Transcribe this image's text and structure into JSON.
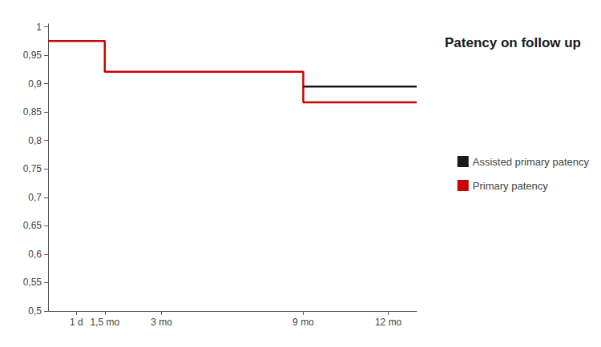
{
  "chart_data": {
    "type": "line",
    "title": "Patency on follow up",
    "xlim": [
      0,
      13
    ],
    "xticks": [
      {
        "value": 1,
        "label": "1 d"
      },
      {
        "value": 2,
        "label": "1,5 mo"
      },
      {
        "value": 4,
        "label": "3 mo"
      },
      {
        "value": 9,
        "label": "9 mo"
      },
      {
        "value": 12,
        "label": "12 mo"
      }
    ],
    "ylim": [
      0.5,
      1.005
    ],
    "yticks": [
      {
        "value": 0.5,
        "label": "0,5"
      },
      {
        "value": 0.55,
        "label": "0,55"
      },
      {
        "value": 0.6,
        "label": "0,6"
      },
      {
        "value": 0.65,
        "label": "0,65"
      },
      {
        "value": 0.7,
        "label": "0,7"
      },
      {
        "value": 0.75,
        "label": "0,75"
      },
      {
        "value": 0.8,
        "label": "0,8"
      },
      {
        "value": 0.85,
        "label": "0,85"
      },
      {
        "value": 0.9,
        "label": "0,9"
      },
      {
        "value": 0.95,
        "label": "0,95"
      },
      1
    ],
    "grid": false,
    "legend": "right",
    "marker": "none",
    "series": [
      {
        "name": "Primary patency",
        "color": "#cc0000",
        "x": [
          0,
          2,
          2,
          9,
          9,
          13
        ],
        "values": [
          0.975,
          0.975,
          0.921,
          0.921,
          0.867,
          0.867
        ]
      },
      {
        "name": "Assisted primary patency",
        "color": "#1a1a1a",
        "x": [
          9,
          13
        ],
        "values": [
          0.895,
          0.895
        ]
      }
    ]
  }
}
